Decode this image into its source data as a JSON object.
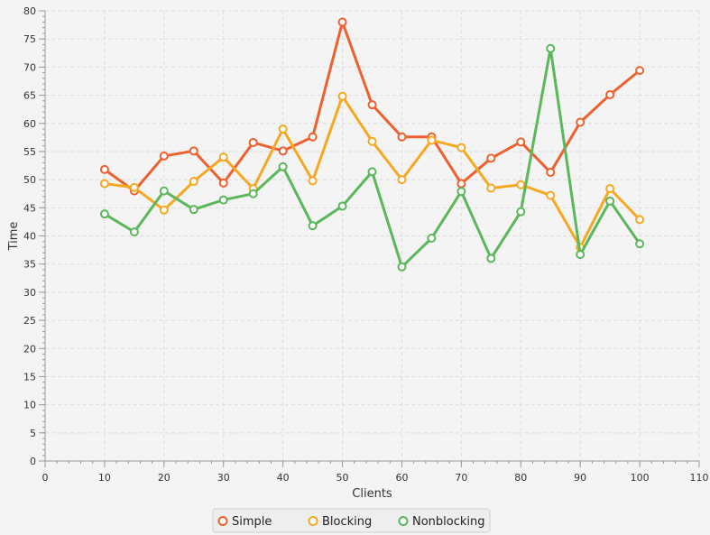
{
  "chart_data": {
    "type": "line",
    "title": "",
    "xlabel": "Clients",
    "ylabel": "Time",
    "xlim": [
      0,
      110
    ],
    "ylim": [
      0,
      80
    ],
    "x_ticks": [
      0,
      10,
      20,
      30,
      40,
      50,
      60,
      70,
      80,
      90,
      100,
      110
    ],
    "y_ticks": [
      0,
      5,
      10,
      15,
      20,
      25,
      30,
      35,
      40,
      45,
      50,
      55,
      60,
      65,
      70,
      75,
      80
    ],
    "grid": true,
    "legend_position": "bottom",
    "x": [
      10,
      15,
      20,
      25,
      30,
      35,
      40,
      45,
      50,
      55,
      60,
      65,
      70,
      75,
      80,
      85,
      90,
      95,
      100
    ],
    "series": [
      {
        "name": "Simple",
        "color": "#f0602e",
        "values": [
          51.8,
          48.0,
          54.2,
          55.1,
          49.4,
          56.6,
          55.1,
          57.6,
          78.0,
          63.3,
          57.6,
          57.6,
          49.3,
          53.8,
          56.7,
          51.3,
          60.2,
          65.1,
          69.4
        ]
      },
      {
        "name": "Blocking",
        "color": "#f7a823",
        "values": [
          49.3,
          48.6,
          44.6,
          49.7,
          54.0,
          48.4,
          59.0,
          49.8,
          64.8,
          56.8,
          50.0,
          57.0,
          55.7,
          48.5,
          49.1,
          47.2,
          38.0,
          48.4,
          42.9
        ]
      },
      {
        "name": "Nonblocking",
        "color": "#5ab75a",
        "values": [
          43.9,
          40.7,
          48.0,
          44.7,
          46.4,
          47.5,
          52.3,
          41.8,
          45.3,
          51.4,
          34.5,
          39.6,
          47.9,
          36.0,
          44.3,
          73.3,
          36.7,
          46.2,
          38.6
        ]
      }
    ]
  }
}
